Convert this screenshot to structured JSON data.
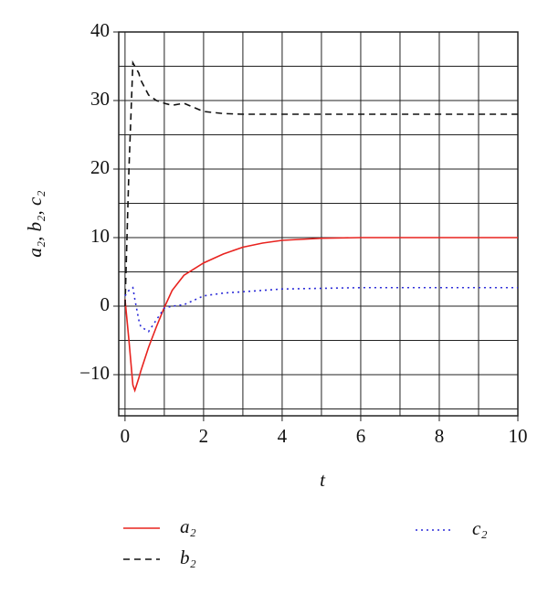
{
  "chart_data": {
    "type": "line",
    "xlabel": "t",
    "ylabel": "a₂, b₂, c₂",
    "x": [
      0,
      0.1,
      0.2,
      0.25,
      0.35,
      0.4,
      0.6,
      0.8,
      1,
      1.2,
      1.5,
      2,
      2.5,
      3,
      3.5,
      4,
      5,
      6,
      8,
      10
    ],
    "series": [
      {
        "name": "a₂",
        "color": "#e8231f",
        "dash": "solid",
        "values": [
          1,
          -5,
          -11.5,
          -12.3,
          -10.5,
          -9.5,
          -6,
          -3,
          -0.2,
          2.3,
          4.5,
          6.3,
          7.6,
          8.6,
          9.2,
          9.6,
          9.9,
          10,
          10,
          10
        ]
      },
      {
        "name": "b₂",
        "color": "#111111",
        "dash": "dashed",
        "values": [
          0,
          20,
          35.5,
          35,
          34,
          33,
          30.8,
          30,
          29.6,
          29.3,
          29.6,
          28.4,
          28.1,
          28,
          28,
          28,
          28,
          28,
          28,
          28
        ]
      },
      {
        "name": "c₂",
        "color": "#2a2ad8",
        "dash": "dotted",
        "values": [
          1.5,
          2.3,
          2.7,
          1,
          -2,
          -3,
          -3.7,
          -2,
          -0.3,
          0,
          0.2,
          1.5,
          1.9,
          2.1,
          2.3,
          2.5,
          2.6,
          2.7,
          2.7,
          2.7
        ]
      }
    ],
    "xlim": [
      -0.16,
      10
    ],
    "ylim": [
      -16,
      40
    ],
    "xticks": [
      0,
      2,
      4,
      6,
      8,
      10
    ],
    "yticks": [
      {
        "value": -10,
        "label": "−10"
      },
      0,
      10,
      20,
      30,
      40
    ],
    "xgrid": [
      0,
      1,
      2,
      3,
      4,
      5,
      6,
      7,
      8,
      9,
      10
    ],
    "ygrid": [
      -15,
      -10,
      -5,
      0,
      5,
      10,
      15,
      20,
      25,
      30,
      35,
      40
    ],
    "grid": true
  }
}
